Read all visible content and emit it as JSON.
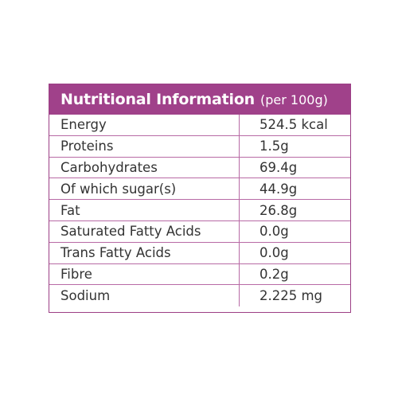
{
  "table": {
    "title": "Nutritional Information",
    "subtitle": "(per 100g)",
    "rows": [
      {
        "label": "Energy",
        "value": "524.5 kcal"
      },
      {
        "label": "Proteins",
        "value": "1.5g"
      },
      {
        "label": "Carbohydrates",
        "value": "69.4g"
      },
      {
        "label": "Of which sugar(s)",
        "value": "44.9g"
      },
      {
        "label": "Fat",
        "value": "26.8g"
      },
      {
        "label": "Saturated Fatty Acids",
        "value": "0.0g"
      },
      {
        "label": "Trans Fatty Acids",
        "value": "0.0g"
      },
      {
        "label": "Fibre",
        "value": "0.2g"
      },
      {
        "label": "Sodium",
        "value": "2.225 mg"
      }
    ]
  },
  "colors": {
    "header_background": "#a0418a",
    "border": "#b86aa5",
    "text": "#333333"
  }
}
